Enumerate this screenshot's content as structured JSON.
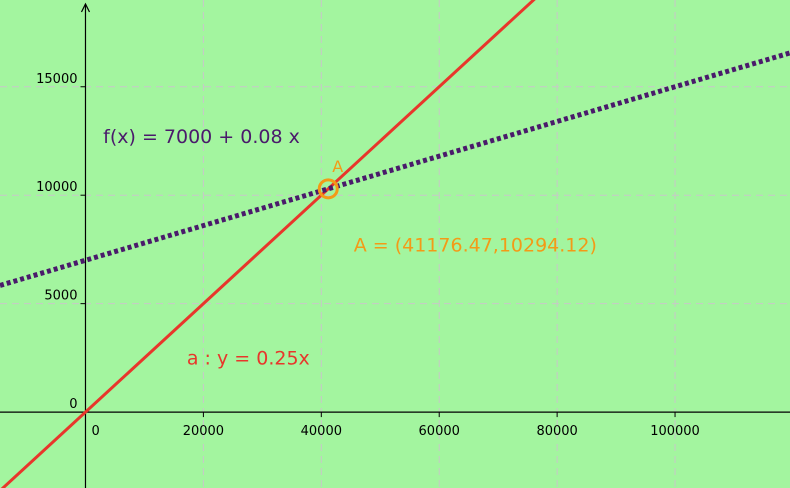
{
  "chart_data": {
    "type": "line",
    "title": "",
    "xlabel": "",
    "ylabel": "",
    "xlim": [
      -14500,
      119500
    ],
    "ylim": [
      -3500,
      19000
    ],
    "grid": true,
    "colors": {
      "background": "#a3f59f",
      "grid": "#c8c8c8",
      "line_a": "#e8362b",
      "line_f": "#4a1a6b",
      "point": "#f39a17",
      "axis": "#000000"
    },
    "x_ticks": [
      {
        "value": 0,
        "label": "0"
      },
      {
        "value": 20000,
        "label": "20000"
      },
      {
        "value": 40000,
        "label": "40000"
      },
      {
        "value": 60000,
        "label": "60000"
      },
      {
        "value": 80000,
        "label": "80000"
      },
      {
        "value": 100000,
        "label": "100000"
      }
    ],
    "y_ticks": [
      {
        "value": 0,
        "label": "0"
      },
      {
        "value": 5000,
        "label": "5000"
      },
      {
        "value": 10000,
        "label": "10000"
      },
      {
        "value": 15000,
        "label": "15000"
      }
    ],
    "series": [
      {
        "id": "a",
        "label_text": "a : y = 0.25x",
        "style": "solid",
        "slope": 0.25,
        "intercept": 0,
        "label_at": [
          17200,
          2200
        ]
      },
      {
        "id": "f",
        "label_text": "f(x) = 7000 + 0.08 x",
        "style": "dotted",
        "slope": 0.08,
        "intercept": 7000,
        "label_at": [
          3000,
          12400
        ]
      }
    ],
    "point": {
      "name": "A",
      "x": 41176.47,
      "y": 10294.12,
      "coord_label": "A = (41176.47,10294.12)",
      "coord_label_at": [
        45500,
        7400
      ]
    }
  }
}
